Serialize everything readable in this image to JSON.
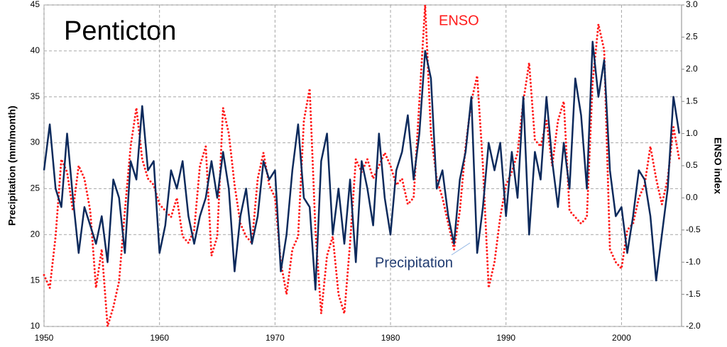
{
  "chart_data": {
    "type": "line",
    "title": "Penticton",
    "ylabel": "Precipitation (mm/month)",
    "y2label": "ENSO index",
    "annotations": [
      "ENSO",
      "Precipitation"
    ],
    "grid": true,
    "x": [
      1950.0,
      1950.5,
      1951.0,
      1951.5,
      1952.0,
      1952.5,
      1953.0,
      1953.5,
      1954.0,
      1954.5,
      1955.0,
      1955.5,
      1956.0,
      1956.5,
      1957.0,
      1957.5,
      1958.0,
      1958.5,
      1959.0,
      1959.5,
      1960.0,
      1960.5,
      1961.0,
      1961.5,
      1962.0,
      1962.5,
      1963.0,
      1963.5,
      1964.0,
      1964.5,
      1965.0,
      1965.5,
      1966.0,
      1966.5,
      1967.0,
      1967.5,
      1968.0,
      1968.5,
      1969.0,
      1969.5,
      1970.0,
      1970.5,
      1971.0,
      1971.5,
      1972.0,
      1972.5,
      1973.0,
      1973.5,
      1974.0,
      1974.5,
      1975.0,
      1975.5,
      1976.0,
      1976.5,
      1977.0,
      1977.5,
      1978.0,
      1978.5,
      1979.0,
      1979.5,
      1980.0,
      1980.5,
      1981.0,
      1981.5,
      1982.0,
      1982.5,
      1983.0,
      1983.5,
      1984.0,
      1984.5,
      1985.0,
      1985.5,
      1986.0,
      1986.5,
      1987.0,
      1987.5,
      1988.0,
      1988.5,
      1989.0,
      1989.5,
      1990.0,
      1990.5,
      1991.0,
      1991.5,
      1992.0,
      1992.5,
      1993.0,
      1993.5,
      1994.0,
      1994.5,
      1995.0,
      1995.5,
      1996.0,
      1996.5,
      1997.0,
      1997.5,
      1998.0,
      1998.5,
      1999.0,
      1999.5,
      2000.0,
      2000.5,
      2001.0,
      2001.5,
      2002.0,
      2002.5,
      2003.0,
      2003.5,
      2004.0,
      2004.5,
      2005.0
    ],
    "series": [
      {
        "name": "Precipitation",
        "color": "#0d2a5c",
        "line_style": "solid",
        "axis": "y",
        "values": [
          27,
          32,
          25,
          23,
          31,
          24,
          18,
          23,
          21,
          19,
          22,
          17,
          26,
          24,
          18,
          28,
          26,
          34,
          27,
          28,
          18,
          21,
          27,
          25,
          28,
          22,
          19,
          22,
          24,
          28,
          24,
          29,
          25,
          16,
          22,
          25,
          19,
          22,
          28,
          26,
          27,
          16,
          20,
          27,
          32,
          24,
          23,
          14,
          28,
          31,
          20,
          25,
          19,
          26,
          17,
          28,
          25,
          21,
          31,
          24,
          20,
          27,
          29,
          33,
          26,
          31,
          40,
          37,
          25,
          27,
          22,
          19,
          26,
          29,
          35,
          18,
          23,
          30,
          27,
          30,
          22,
          29,
          24,
          35,
          20,
          29,
          26,
          35,
          28,
          23,
          30,
          25,
          37,
          33,
          25,
          41,
          35,
          39,
          27,
          22,
          23,
          18,
          22,
          27,
          26,
          22,
          15,
          20,
          25,
          35,
          31
        ]
      },
      {
        "name": "ENSO",
        "color": "#ff1a1a",
        "line_style": "dotted",
        "axis": "y2",
        "values": [
          -1.2,
          -1.4,
          -0.6,
          0.6,
          0.4,
          -0.2,
          0.5,
          0.3,
          -0.2,
          -1.4,
          -0.8,
          -2.0,
          -1.7,
          -1.3,
          -0.2,
          0.8,
          1.4,
          0.6,
          0.3,
          0.2,
          -0.1,
          -0.2,
          -0.3,
          0.0,
          -0.6,
          -0.7,
          -0.5,
          0.5,
          0.8,
          -0.9,
          -0.6,
          1.4,
          1.0,
          0.2,
          -0.4,
          -0.6,
          -0.7,
          0.3,
          0.7,
          0.2,
          0.0,
          -1.0,
          -1.5,
          -0.8,
          -0.6,
          1.2,
          1.7,
          -0.5,
          -1.8,
          -0.9,
          -0.6,
          -1.5,
          -1.8,
          -0.7,
          0.6,
          0.4,
          0.6,
          0.3,
          0.5,
          0.7,
          0.5,
          0.2,
          0.3,
          -0.1,
          0.0,
          1.5,
          3.0,
          1.0,
          0.3,
          0.0,
          -0.4,
          -0.8,
          -0.2,
          0.8,
          1.5,
          1.9,
          0.5,
          -1.4,
          -1.0,
          -0.3,
          0.2,
          0.4,
          0.7,
          1.5,
          2.1,
          0.9,
          0.8,
          1.2,
          0.5,
          1.2,
          1.5,
          -0.2,
          -0.3,
          -0.4,
          -0.3,
          1.8,
          2.7,
          2.3,
          -0.8,
          -1.0,
          -1.1,
          -0.5,
          -0.4,
          0.0,
          0.2,
          0.8,
          0.3,
          -0.1,
          0.3,
          1.1,
          0.6
        ]
      }
    ],
    "xlim": [
      1950,
      2005.2
    ],
    "xticks": [
      1950,
      1960,
      1970,
      1980,
      1990,
      2000
    ],
    "ylim": [
      10,
      45
    ],
    "yticks": [
      10,
      15,
      20,
      25,
      30,
      35,
      40,
      45
    ],
    "y2lim": [
      -2,
      3
    ],
    "y2ticks": [
      {
        "value": -2,
        "label": "-2.0"
      },
      {
        "value": -1.5,
        "label": "-1.5"
      },
      {
        "value": -1,
        "label": "-1.0"
      },
      {
        "value": -0.5,
        "label": "-0.5"
      },
      {
        "value": 0,
        "label": "0.0"
      },
      {
        "value": 0.5,
        "label": "0.5"
      },
      {
        "value": 1,
        "label": "1.0"
      },
      {
        "value": 1.5,
        "label": "1.5"
      },
      {
        "value": 2,
        "label": "2.0"
      },
      {
        "value": 2.5,
        "label": "2.5"
      },
      {
        "value": 3,
        "label": "3.0"
      }
    ]
  }
}
